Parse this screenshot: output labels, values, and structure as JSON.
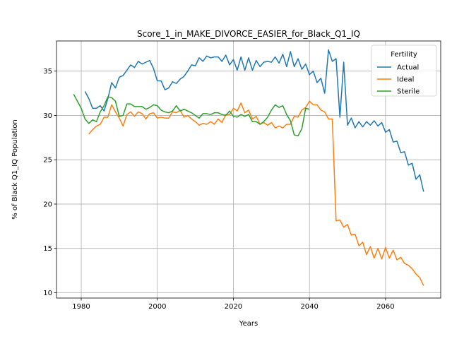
{
  "chart_data": {
    "type": "line",
    "title": "Score_1_in_MAKE_DIVORCE_EASIER_for_Black_Q1_IQ",
    "xlabel": "Years",
    "ylabel": "% of Black Q1_IQ Population",
    "xlim": [
      1973.5,
      2074.5
    ],
    "ylim": [
      9.4,
      38.4
    ],
    "xticks": [
      1980,
      2000,
      2020,
      2040,
      2060
    ],
    "yticks": [
      10,
      15,
      20,
      25,
      30,
      35
    ],
    "grid": true,
    "legend": {
      "title": "Fertility",
      "placement": "top-right"
    },
    "series": [
      {
        "name": "Actual",
        "color": "#1f77b4",
        "points": [
          [
            1981,
            32.7
          ],
          [
            1982,
            31.9
          ],
          [
            1983,
            30.8
          ],
          [
            1984,
            30.8
          ],
          [
            1985,
            31.1
          ],
          [
            1986,
            30.5
          ],
          [
            1987,
            31.9
          ],
          [
            1988,
            33.7
          ],
          [
            1989,
            33.1
          ],
          [
            1990,
            34.3
          ],
          [
            1991,
            34.5
          ],
          [
            1992,
            35.1
          ],
          [
            1993,
            35.7
          ],
          [
            1994,
            35.4
          ],
          [
            1995,
            36.1
          ],
          [
            1996,
            35.8
          ],
          [
            1997,
            36.0
          ],
          [
            1998,
            36.2
          ],
          [
            1999,
            35.3
          ],
          [
            2000,
            33.9
          ],
          [
            2001,
            33.9
          ],
          [
            2002,
            32.9
          ],
          [
            2003,
            33.1
          ],
          [
            2004,
            33.8
          ],
          [
            2005,
            33.6
          ],
          [
            2006,
            34.1
          ],
          [
            2007,
            34.4
          ],
          [
            2008,
            35.0
          ],
          [
            2009,
            35.7
          ],
          [
            2010,
            35.6
          ],
          [
            2011,
            36.5
          ],
          [
            2012,
            36.1
          ],
          [
            2013,
            36.7
          ],
          [
            2014,
            36.5
          ],
          [
            2015,
            36.6
          ],
          [
            2016,
            36.6
          ],
          [
            2017,
            36.1
          ],
          [
            2018,
            36.8
          ],
          [
            2019,
            35.7
          ],
          [
            2020,
            36.3
          ],
          [
            2021,
            35.1
          ],
          [
            2022,
            36.6
          ],
          [
            2023,
            35.1
          ],
          [
            2024,
            36.5
          ],
          [
            2025,
            35.1
          ],
          [
            2026,
            36.2
          ],
          [
            2027,
            35.5
          ],
          [
            2028,
            36.0
          ],
          [
            2029,
            36.1
          ],
          [
            2030,
            36.0
          ],
          [
            2031,
            36.6
          ],
          [
            2032,
            35.9
          ],
          [
            2033,
            36.9
          ],
          [
            2034,
            35.5
          ],
          [
            2035,
            37.2
          ],
          [
            2036,
            35.5
          ],
          [
            2037,
            36.4
          ],
          [
            2038,
            35.2
          ],
          [
            2039,
            35.8
          ],
          [
            2040,
            34.6
          ],
          [
            2041,
            35.0
          ],
          [
            2042,
            33.7
          ],
          [
            2043,
            34.2
          ],
          [
            2044,
            32.5
          ],
          [
            2045,
            37.4
          ],
          [
            2046,
            36.1
          ],
          [
            2047,
            36.4
          ],
          [
            2048,
            29.8
          ],
          [
            2049,
            36.0
          ],
          [
            2050,
            28.9
          ],
          [
            2051,
            29.7
          ],
          [
            2052,
            28.6
          ],
          [
            2053,
            29.3
          ],
          [
            2054,
            28.7
          ],
          [
            2055,
            29.3
          ],
          [
            2056,
            28.9
          ],
          [
            2057,
            29.4
          ],
          [
            2058,
            28.8
          ],
          [
            2059,
            29.2
          ],
          [
            2060,
            28.1
          ],
          [
            2061,
            28.4
          ],
          [
            2062,
            27.0
          ],
          [
            2063,
            27.1
          ],
          [
            2064,
            25.8
          ],
          [
            2065,
            25.9
          ],
          [
            2066,
            24.4
          ],
          [
            2067,
            24.6
          ],
          [
            2068,
            22.8
          ],
          [
            2069,
            23.3
          ],
          [
            2070,
            21.4
          ]
        ]
      },
      {
        "name": "Ideal",
        "color": "#ff7f0e",
        "points": [
          [
            1982,
            27.9
          ],
          [
            1983,
            28.4
          ],
          [
            1984,
            28.8
          ],
          [
            1985,
            29.0
          ],
          [
            1986,
            29.8
          ],
          [
            1987,
            29.8
          ],
          [
            1988,
            31.2
          ],
          [
            1989,
            30.4
          ],
          [
            1990,
            29.7
          ],
          [
            1991,
            28.8
          ],
          [
            1992,
            30.1
          ],
          [
            1993,
            30.4
          ],
          [
            1994,
            29.9
          ],
          [
            1995,
            30.4
          ],
          [
            1996,
            30.2
          ],
          [
            1997,
            29.6
          ],
          [
            1998,
            30.2
          ],
          [
            1999,
            30.3
          ],
          [
            2000,
            29.7
          ],
          [
            2001,
            29.8
          ],
          [
            2002,
            29.7
          ],
          [
            2003,
            29.7
          ],
          [
            2004,
            30.4
          ],
          [
            2005,
            30.3
          ],
          [
            2006,
            30.6
          ],
          [
            2007,
            29.8
          ],
          [
            2008,
            30.0
          ],
          [
            2009,
            29.6
          ],
          [
            2010,
            29.3
          ],
          [
            2011,
            28.9
          ],
          [
            2012,
            29.1
          ],
          [
            2013,
            29.0
          ],
          [
            2014,
            29.3
          ],
          [
            2015,
            29.0
          ],
          [
            2016,
            29.6
          ],
          [
            2017,
            29.2
          ],
          [
            2018,
            30.1
          ],
          [
            2019,
            30.1
          ],
          [
            2020,
            30.8
          ],
          [
            2021,
            30.5
          ],
          [
            2022,
            31.4
          ],
          [
            2023,
            30.3
          ],
          [
            2024,
            30.6
          ],
          [
            2025,
            29.6
          ],
          [
            2026,
            29.9
          ],
          [
            2027,
            29.0
          ],
          [
            2028,
            29.2
          ],
          [
            2029,
            28.9
          ],
          [
            2030,
            29.2
          ],
          [
            2031,
            28.6
          ],
          [
            2032,
            28.8
          ],
          [
            2033,
            28.6
          ],
          [
            2034,
            29.0
          ],
          [
            2035,
            29.0
          ],
          [
            2036,
            29.9
          ],
          [
            2037,
            29.8
          ],
          [
            2038,
            30.6
          ],
          [
            2039,
            30.9
          ],
          [
            2040,
            31.6
          ],
          [
            2041,
            31.2
          ],
          [
            2042,
            31.2
          ],
          [
            2043,
            30.6
          ],
          [
            2044,
            30.4
          ],
          [
            2045,
            29.6
          ],
          [
            2046,
            29.6
          ],
          [
            2047,
            18.1
          ],
          [
            2048,
            18.2
          ],
          [
            2049,
            17.4
          ],
          [
            2050,
            17.7
          ],
          [
            2051,
            16.5
          ],
          [
            2052,
            16.6
          ],
          [
            2053,
            15.3
          ],
          [
            2054,
            15.7
          ],
          [
            2055,
            14.3
          ],
          [
            2056,
            15.2
          ],
          [
            2057,
            13.9
          ],
          [
            2058,
            15.0
          ],
          [
            2059,
            13.8
          ],
          [
            2060,
            15.1
          ],
          [
            2061,
            13.9
          ],
          [
            2062,
            14.8
          ],
          [
            2063,
            13.7
          ],
          [
            2064,
            14.0
          ],
          [
            2065,
            13.3
          ],
          [
            2066,
            13.1
          ],
          [
            2067,
            12.7
          ],
          [
            2068,
            12.1
          ],
          [
            2069,
            11.7
          ],
          [
            2070,
            10.8
          ]
        ]
      },
      {
        "name": "Sterile",
        "color": "#2ca02c",
        "points": [
          [
            1978,
            32.4
          ],
          [
            1979,
            31.6
          ],
          [
            1980,
            30.8
          ],
          [
            1981,
            29.6
          ],
          [
            1982,
            29.1
          ],
          [
            1983,
            29.5
          ],
          [
            1984,
            29.3
          ],
          [
            1985,
            30.4
          ],
          [
            1986,
            31.1
          ],
          [
            1987,
            32.1
          ],
          [
            1988,
            32.0
          ],
          [
            1989,
            31.6
          ],
          [
            1990,
            29.9
          ],
          [
            1991,
            30.0
          ],
          [
            1992,
            31.3
          ],
          [
            1993,
            31.3
          ],
          [
            1994,
            31.0
          ],
          [
            1995,
            31.0
          ],
          [
            1996,
            31.0
          ],
          [
            1997,
            30.7
          ],
          [
            1998,
            30.9
          ],
          [
            1999,
            31.2
          ],
          [
            2000,
            31.1
          ],
          [
            2001,
            30.6
          ],
          [
            2002,
            30.4
          ],
          [
            2003,
            30.3
          ],
          [
            2004,
            30.5
          ],
          [
            2005,
            31.1
          ],
          [
            2006,
            30.5
          ],
          [
            2007,
            30.7
          ],
          [
            2008,
            30.5
          ],
          [
            2009,
            30.3
          ],
          [
            2010,
            30.0
          ],
          [
            2011,
            29.7
          ],
          [
            2012,
            30.2
          ],
          [
            2013,
            30.2
          ],
          [
            2014,
            30.1
          ],
          [
            2015,
            30.3
          ],
          [
            2016,
            30.3
          ],
          [
            2017,
            30.1
          ],
          [
            2018,
            30.0
          ],
          [
            2019,
            30.5
          ],
          [
            2020,
            29.9
          ],
          [
            2021,
            29.8
          ],
          [
            2022,
            30.1
          ],
          [
            2023,
            29.9
          ],
          [
            2024,
            30.1
          ],
          [
            2025,
            29.3
          ],
          [
            2026,
            29.3
          ],
          [
            2027,
            29.0
          ],
          [
            2028,
            29.3
          ],
          [
            2029,
            29.8
          ],
          [
            2030,
            30.6
          ],
          [
            2031,
            31.2
          ],
          [
            2032,
            30.9
          ],
          [
            2033,
            31.1
          ],
          [
            2034,
            30.1
          ],
          [
            2035,
            29.4
          ],
          [
            2036,
            27.8
          ],
          [
            2037,
            27.7
          ],
          [
            2038,
            28.5
          ],
          [
            2039,
            30.8
          ],
          [
            2040,
            30.7
          ]
        ]
      }
    ]
  }
}
